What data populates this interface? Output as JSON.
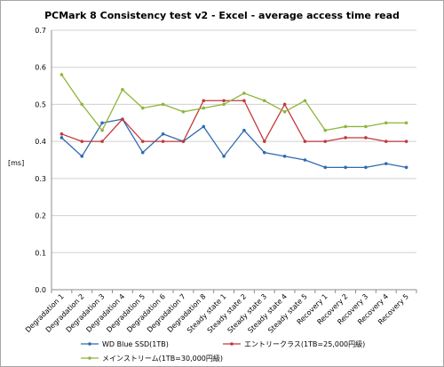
{
  "chart_data": {
    "type": "line",
    "title": "PCMark 8 Consistency test v2 - Excel - average access time read",
    "ylabel": "[ms]",
    "xlabel": "",
    "ylim": [
      0,
      0.7
    ],
    "yticks": [
      "0.0",
      "0.1",
      "0.2",
      "0.3",
      "0.4",
      "0.5",
      "0.6",
      "0.7"
    ],
    "grid": true,
    "legend_position": "bottom",
    "categories": [
      "Degradation 1",
      "Degradation 2",
      "Degradation 3",
      "Degradation 4",
      "Degradation 5",
      "Degradation 6",
      "Degradation 7",
      "Degradation 8",
      "Steady state 1",
      "Steady state 2",
      "Steady state 3",
      "Steady state 4",
      "Steady state 5",
      "Recovery 1",
      "Recovery 2",
      "Recovery 3",
      "Recovery 4",
      "Recovery 5"
    ],
    "series": [
      {
        "name": "WD Blue SSD(1TB)",
        "color": "#2e6bb0",
        "values": [
          0.41,
          0.36,
          0.45,
          0.46,
          0.37,
          0.42,
          0.4,
          0.44,
          0.36,
          0.43,
          0.37,
          0.36,
          0.35,
          0.33,
          0.33,
          0.33,
          0.34,
          0.33
        ]
      },
      {
        "name": "エントリークラス(1TB=25,000円級)",
        "color": "#c0393b",
        "values": [
          0.42,
          0.4,
          0.4,
          0.46,
          0.4,
          0.4,
          0.4,
          0.51,
          0.51,
          0.51,
          0.4,
          0.5,
          0.4,
          0.4,
          0.41,
          0.41,
          0.4,
          0.4
        ]
      },
      {
        "name": "メインストリーム(1TB=30,000円級)",
        "color": "#8fb53a",
        "values": [
          0.58,
          0.5,
          0.43,
          0.54,
          0.49,
          0.5,
          0.48,
          0.49,
          0.5,
          0.53,
          0.51,
          0.48,
          0.51,
          0.43,
          0.44,
          0.44,
          0.45,
          0.45
        ]
      }
    ]
  }
}
